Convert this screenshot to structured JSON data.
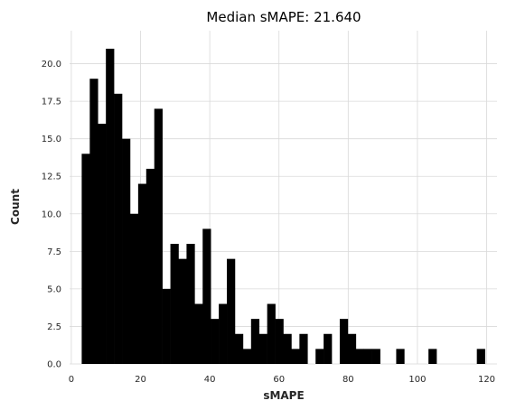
{
  "chart_data": {
    "type": "bar",
    "title": "Median sMAPE: 21.640",
    "xlabel": "sMAPE",
    "ylabel": "Count",
    "xlim": [
      -0.5,
      123
    ],
    "ylim": [
      0,
      22.2
    ],
    "xticks": [
      0,
      20,
      40,
      60,
      80,
      100,
      120
    ],
    "xtick_labels": [
      "0",
      "20",
      "40",
      "60",
      "80",
      "100",
      "120"
    ],
    "yticks": [
      0,
      2.5,
      5,
      7.5,
      10,
      12.5,
      15,
      17.5,
      20
    ],
    "ytick_labels": [
      "0.0",
      "2.5",
      "5.0",
      "7.5",
      "10.0",
      "12.5",
      "15.0",
      "17.5",
      "20.0"
    ],
    "grid": true,
    "legend": "none",
    "bar_color": "#000000",
    "bin_start": 3.0,
    "bin_width": 2.33,
    "values": [
      14,
      19,
      16,
      21,
      18,
      15,
      10,
      12,
      13,
      17,
      5,
      8,
      7,
      8,
      4,
      9,
      3,
      4,
      7,
      2,
      1,
      3,
      2,
      4,
      3,
      2,
      1,
      2,
      0,
      1,
      2,
      0,
      3,
      2,
      1,
      1,
      1,
      0,
      0,
      1,
      0,
      0,
      0,
      1,
      0,
      0,
      0,
      0,
      0,
      1
    ]
  }
}
